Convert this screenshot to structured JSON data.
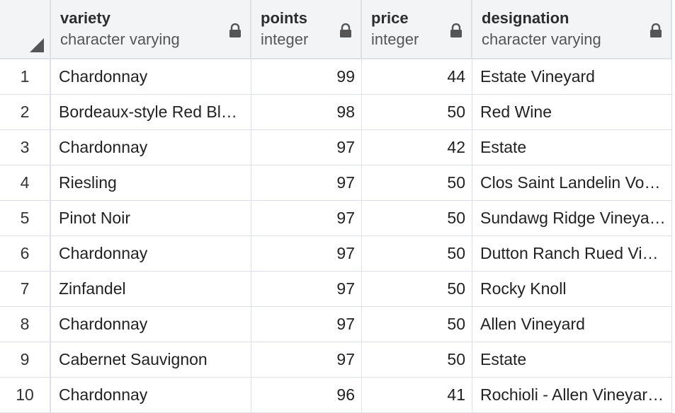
{
  "columns": [
    {
      "name": "variety",
      "type": "character varying",
      "icon": "lock-icon"
    },
    {
      "name": "points",
      "type": "integer",
      "icon": "lock-icon"
    },
    {
      "name": "price",
      "type": "integer",
      "icon": "lock-icon"
    },
    {
      "name": "designation",
      "type": "character varying",
      "icon": "lock-icon"
    }
  ],
  "rows": [
    {
      "n": "1",
      "variety": "Chardonnay",
      "points": "99",
      "price": "44",
      "designation": "Estate Vineyard"
    },
    {
      "n": "2",
      "variety": "Bordeaux-style Red Ble…",
      "points": "98",
      "price": "50",
      "designation": "Red Wine"
    },
    {
      "n": "3",
      "variety": "Chardonnay",
      "points": "97",
      "price": "42",
      "designation": "Estate"
    },
    {
      "n": "4",
      "variety": "Riesling",
      "points": "97",
      "price": "50",
      "designation": "Clos Saint Landelin Vo…"
    },
    {
      "n": "5",
      "variety": "Pinot Noir",
      "points": "97",
      "price": "50",
      "designation": "Sundawg Ridge Vineya…"
    },
    {
      "n": "6",
      "variety": "Chardonnay",
      "points": "97",
      "price": "50",
      "designation": "Dutton Ranch Rued Vin…"
    },
    {
      "n": "7",
      "variety": "Zinfandel",
      "points": "97",
      "price": "50",
      "designation": "Rocky Knoll"
    },
    {
      "n": "8",
      "variety": "Chardonnay",
      "points": "97",
      "price": "50",
      "designation": "Allen Vineyard"
    },
    {
      "n": "9",
      "variety": "Cabernet Sauvignon",
      "points": "97",
      "price": "50",
      "designation": "Estate"
    },
    {
      "n": "10",
      "variety": "Chardonnay",
      "points": "96",
      "price": "41",
      "designation": "Rochioli - Allen Vineyar…"
    }
  ],
  "colors": {
    "header_bg": "#f3f4f6",
    "grid_line": "#dde0e6",
    "accent": "#3a6aa3"
  }
}
